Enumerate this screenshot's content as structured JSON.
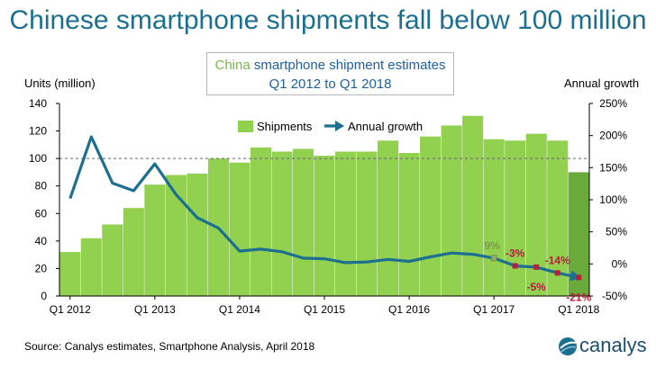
{
  "page": {
    "title": "Chinese smartphone shipments fall below 100 million",
    "box_accent": "China",
    "box_line1_rest": " smartphone shipment estimates",
    "box_line2": "Q1 2012 to Q1 2018",
    "left_axis_title": "Units (million)",
    "right_axis_title": "Annual growth",
    "source": "Source: Canalys estimates, Smartphone Analysis, April 2018",
    "logo_text": "canalys"
  },
  "colors": {
    "bar": "#92d050",
    "bar_last": "#6aaa3a",
    "line": "#1c6f8f",
    "marker_red": "#b2213b",
    "marker_green": "#8cae6a",
    "label_red": "#b2213b",
    "label_green": "#7c9c4c"
  },
  "chart_data": {
    "type": "bar+line",
    "categories": [
      "Q1 2012",
      "Q2 2012",
      "Q3 2012",
      "Q4 2012",
      "Q1 2013",
      "Q2 2013",
      "Q3 2013",
      "Q4 2013",
      "Q1 2014",
      "Q2 2014",
      "Q3 2014",
      "Q4 2014",
      "Q1 2015",
      "Q2 2015",
      "Q3 2015",
      "Q4 2015",
      "Q1 2016",
      "Q2 2016",
      "Q3 2016",
      "Q4 2016",
      "Q1 2017",
      "Q2 2017",
      "Q3 2017",
      "Q4 2017",
      "Q1 2018"
    ],
    "x_tick_labels": [
      {
        "category": "Q1 2012",
        "label": "Q1 2012"
      },
      {
        "category": "Q1 2013",
        "label": "Q1 2013"
      },
      {
        "category": "Q1 2014",
        "label": "Q1 2014"
      },
      {
        "category": "Q1 2015",
        "label": "Q1 2015"
      },
      {
        "category": "Q1 2016",
        "label": "Q1 2016"
      },
      {
        "category": "Q1 2017",
        "label": "Q1 2017"
      },
      {
        "category": "Q1 2018",
        "label": "Q1 2018"
      }
    ],
    "series": [
      {
        "name": "Shipments",
        "type": "bar",
        "axis": "left",
        "values": [
          32,
          42,
          52,
          64,
          81,
          88,
          89,
          100,
          97,
          108,
          105,
          107,
          102,
          105,
          105,
          113,
          104,
          116,
          124,
          131,
          114,
          113,
          118,
          113,
          90
        ]
      },
      {
        "name": "Annual growth",
        "type": "line",
        "axis": "right",
        "values": [
          102,
          198,
          126,
          114,
          156,
          108,
          72,
          56,
          20,
          23,
          19,
          9,
          8,
          2,
          3,
          7,
          4,
          11,
          17,
          15,
          9,
          -3,
          -5,
          -14,
          -21
        ]
      }
    ],
    "point_labels": [
      {
        "category": "Q1 2017",
        "text": "9%",
        "color": "green",
        "position": "above"
      },
      {
        "category": "Q2 2017",
        "text": "-3%",
        "color": "red",
        "position": "above"
      },
      {
        "category": "Q3 2017",
        "text": "-5%",
        "color": "red",
        "position": "below"
      },
      {
        "category": "Q4 2017",
        "text": "-14%",
        "color": "red",
        "position": "above"
      },
      {
        "category": "Q1 2018",
        "text": "-21%",
        "color": "red",
        "position": "below"
      }
    ],
    "marker_categories": {
      "green": [
        "Q1 2017"
      ],
      "red": [
        "Q2 2017",
        "Q3 2017",
        "Q4 2017",
        "Q1 2018"
      ]
    },
    "left_axis": {
      "min": 0,
      "max": 140,
      "ticks": [
        0,
        20,
        40,
        60,
        80,
        100,
        120,
        140
      ]
    },
    "right_axis": {
      "min": -50,
      "max": 250,
      "ticks": [
        -50,
        0,
        50,
        100,
        150,
        200,
        250
      ],
      "tick_labels": [
        "-50%",
        "0%",
        "50%",
        "100%",
        "150%",
        "200%",
        "250%"
      ]
    },
    "reference_line": {
      "axis": "left",
      "value": 100,
      "style": "dashed"
    },
    "legend": {
      "placement": "top-center",
      "items": [
        "Shipments",
        "Annual growth"
      ]
    },
    "grid": false
  }
}
